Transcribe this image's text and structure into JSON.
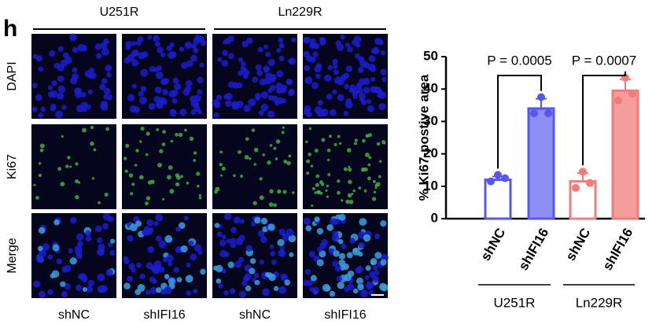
{
  "panel_label": "h",
  "image_grid": {
    "column_groups": [
      "U251R",
      "Ln229R"
    ],
    "row_labels": [
      "DAPI",
      "Ki67",
      "Merge"
    ],
    "column_labels": [
      "shNC",
      "shIFI16",
      "shNC",
      "shIFI16"
    ]
  },
  "chart_data": {
    "type": "bar",
    "y_label": "% Ki67-postive area",
    "categories": [
      "shNC",
      "shIFI16",
      "shNC",
      "shIFI16"
    ],
    "group_labels": [
      "U251R",
      "Ln229R"
    ],
    "values": [
      12,
      34,
      11.5,
      39.5
    ],
    "errors": [
      1,
      3,
      2.5,
      3.5
    ],
    "points": [
      [
        13.5,
        11.5,
        12.5
      ],
      [
        37.5,
        32.5,
        32.5
      ],
      [
        14.5,
        9.5,
        11
      ],
      [
        43.5,
        36.5,
        38.5
      ]
    ],
    "colors": [
      "#5757f0",
      "#5757f0",
      "#f07b7b",
      "#f07b7b"
    ],
    "fills": [
      "#ffffff",
      "#8e8ef4",
      "#ffffff",
      "#f59c9c"
    ],
    "annotations": [
      "P = 0.0005",
      "P = 0.0007"
    ],
    "ylim": [
      0,
      50
    ],
    "yticks": [
      0,
      10,
      20,
      30,
      40,
      50
    ]
  }
}
